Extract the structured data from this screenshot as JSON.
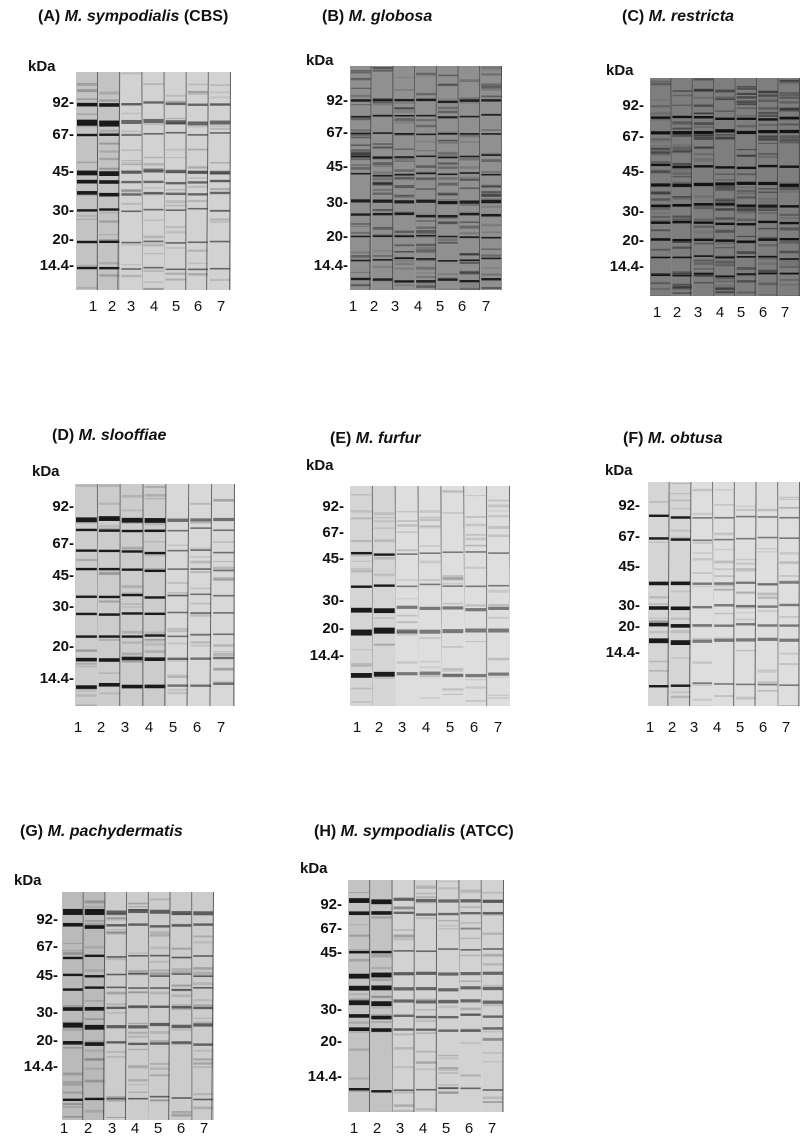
{
  "unit_label": "kDa",
  "panels": [
    {
      "id": "A",
      "letter": "(A)",
      "species": "M. sympodialis",
      "suffix": "(CBS)",
      "markers": [
        "92-",
        "67-",
        "45-",
        "30-",
        "20-",
        "14.4-"
      ],
      "lanes": [
        "1",
        "2",
        "3",
        "4",
        "5",
        "6",
        "7"
      ]
    },
    {
      "id": "B",
      "letter": "(B)",
      "species": "M. globosa",
      "suffix": "",
      "markers": [
        "92-",
        "67-",
        "45-",
        "30-",
        "20-",
        "14.4-"
      ],
      "lanes": [
        "1",
        "2",
        "3",
        "4",
        "5",
        "6",
        "7"
      ]
    },
    {
      "id": "C",
      "letter": "(C)",
      "species": "M. restricta",
      "suffix": "",
      "markers": [
        "92-",
        "67-",
        "45-",
        "30-",
        "20-",
        "14.4-"
      ],
      "lanes": [
        "1",
        "2",
        "3",
        "4",
        "5",
        "6",
        "7"
      ]
    },
    {
      "id": "D",
      "letter": "(D)",
      "species": "M. slooffiae",
      "suffix": "",
      "markers": [
        "92-",
        "67-",
        "45-",
        "30-",
        "20-",
        "14.4-"
      ],
      "lanes": [
        "1",
        "2",
        "3",
        "4",
        "5",
        "6",
        "7"
      ]
    },
    {
      "id": "E",
      "letter": "(E)",
      "species": "M. furfur",
      "suffix": "",
      "markers": [
        "92-",
        "67-",
        "45-",
        "30-",
        "20-",
        "14.4-"
      ],
      "lanes": [
        "1",
        "2",
        "3",
        "4",
        "5",
        "6",
        "7"
      ]
    },
    {
      "id": "F",
      "letter": "(F)",
      "species": "M. obtusa",
      "suffix": "",
      "markers": [
        "92-",
        "67-",
        "45-",
        "30-",
        "20-",
        "14.4-"
      ],
      "lanes": [
        "1",
        "2",
        "3",
        "4",
        "5",
        "6",
        "7"
      ]
    },
    {
      "id": "G",
      "letter": "(G)",
      "species": "M. pachydermatis",
      "suffix": "",
      "markers": [
        "92-",
        "67-",
        "45-",
        "30-",
        "20-",
        "14.4-"
      ],
      "lanes": [
        "1",
        "2",
        "3",
        "4",
        "5",
        "6",
        "7"
      ]
    },
    {
      "id": "H",
      "letter": "(H)",
      "species": "M. sympodialis",
      "suffix": "(ATCC)",
      "markers": [
        "92-",
        "67-",
        "45-",
        "30-",
        "20-",
        "14.4-"
      ],
      "lanes": [
        "1",
        "2",
        "3",
        "4",
        "5",
        "6",
        "7"
      ]
    }
  ]
}
